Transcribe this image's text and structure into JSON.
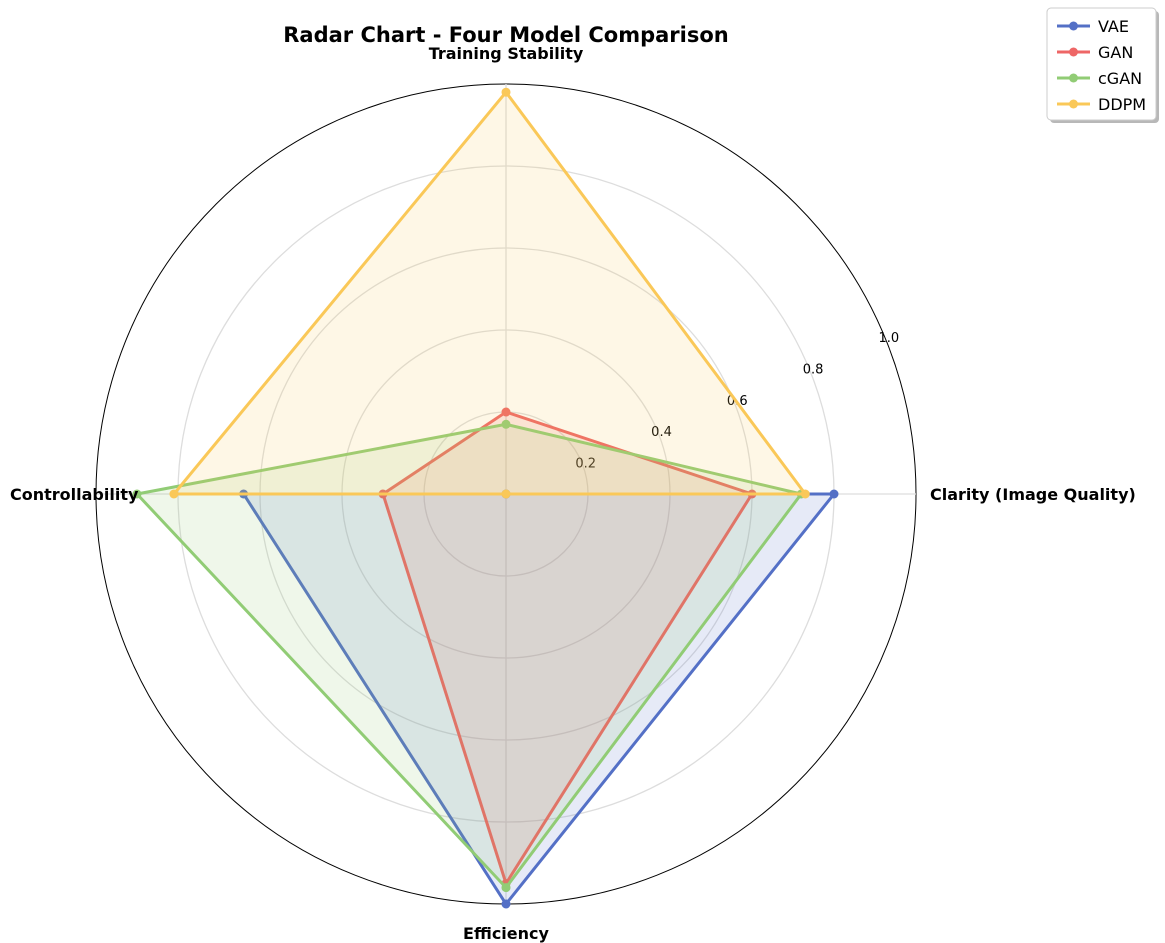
{
  "chart_data": {
    "type": "radar",
    "title": "Radar Chart - Four Model Comparison",
    "axes": [
      "Clarity (Image Quality)",
      "Training Stability",
      "Controllability",
      "Efficiency"
    ],
    "rlim": [
      0,
      1.0
    ],
    "radial_ticks": [
      "0.2",
      "0.4",
      "0.6",
      "0.8",
      "1.0"
    ],
    "radial_tick_values": [
      0.2,
      0.4,
      0.6,
      0.8,
      1.0
    ],
    "grid": true,
    "legend_position": "top-right",
    "series": [
      {
        "name": "VAE",
        "color": "#5470c6",
        "values": [
          0.8,
          0.0,
          0.64,
          1.0
        ]
      },
      {
        "name": "GAN",
        "color": "#ee6666",
        "values": [
          0.6,
          0.2,
          0.3,
          0.95
        ]
      },
      {
        "name": "cGAN",
        "color": "#91cc75",
        "values": [
          0.72,
          0.17,
          0.9,
          0.96
        ]
      },
      {
        "name": "DDPM",
        "color": "#fac858",
        "values": [
          0.73,
          0.98,
          0.81,
          0.0
        ]
      }
    ]
  }
}
